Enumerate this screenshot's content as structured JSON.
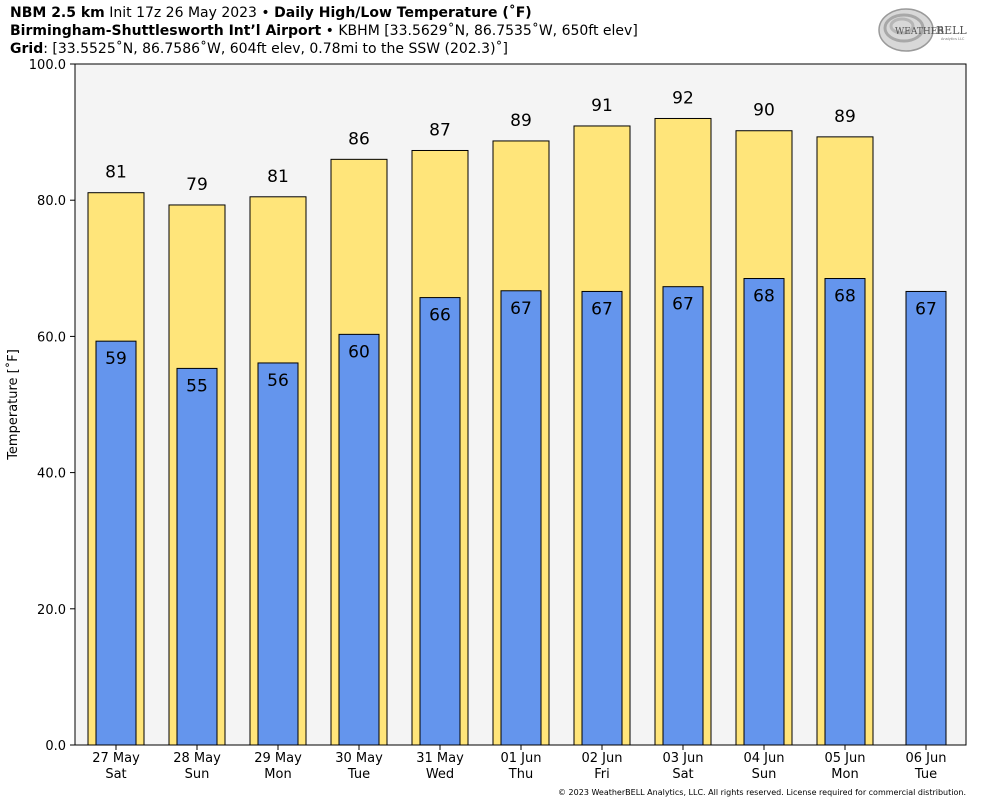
{
  "header": {
    "line1_bold1": "NBM 2.5 km",
    "line1_normal": " Init 17z 26 May 2023 • ",
    "line1_bold2": "Daily High/Low Temperature (˚F)",
    "line2_bold": "Birmingham-Shuttlesworth Int’l Airport",
    "line2_normal": " • KBHM [33.5629˚N, 86.7535˚W, 650ft elev]",
    "line3_bold": "Grid",
    "line3_normal": ": [33.5525˚N, 86.7586˚W, 604ft elev, 0.78mi to the SSW (202.3)˚]"
  },
  "logo": {
    "text_top": "WEATHER",
    "text_bell": "BELL",
    "sub": "Analytics LLC"
  },
  "copyright": "© 2023 WeatherBELL Analytics, LLC. All rights reserved. License required for commercial distribution.",
  "colors": {
    "high": "#FFE57A",
    "low": "#6495ED",
    "plot_bg": "#F4F4F4"
  },
  "chart_data": {
    "type": "bar",
    "ylabel": "Temperature [˚F]",
    "ylim": [
      0,
      100
    ],
    "yticks": [
      "0.0",
      "20.0",
      "40.0",
      "60.0",
      "80.0",
      "100.0"
    ],
    "categories": [
      [
        "27 May",
        "Sat"
      ],
      [
        "28 May",
        "Sun"
      ],
      [
        "29 May",
        "Mon"
      ],
      [
        "30 May",
        "Tue"
      ],
      [
        "31 May",
        "Wed"
      ],
      [
        "01 Jun",
        "Thu"
      ],
      [
        "02 Jun",
        "Fri"
      ],
      [
        "03 Jun",
        "Sat"
      ],
      [
        "04 Jun",
        "Sun"
      ],
      [
        "05 Jun",
        "Mon"
      ],
      [
        "06 Jun",
        "Tue"
      ]
    ],
    "series": [
      {
        "key": "high",
        "values": [
          81,
          79,
          81,
          86,
          87,
          89,
          91,
          92,
          90,
          89,
          null
        ],
        "plotted": [
          81.1,
          79.3,
          80.5,
          86.0,
          87.3,
          88.7,
          90.9,
          92.0,
          90.2,
          89.3,
          null
        ]
      },
      {
        "key": "low",
        "values": [
          59,
          55,
          56,
          60,
          66,
          67,
          67,
          67,
          68,
          68,
          67
        ],
        "plotted": [
          59.3,
          55.3,
          56.1,
          60.3,
          65.7,
          66.7,
          66.6,
          67.3,
          68.5,
          68.5,
          66.6
        ]
      }
    ],
    "grid": false,
    "legend": "none"
  }
}
